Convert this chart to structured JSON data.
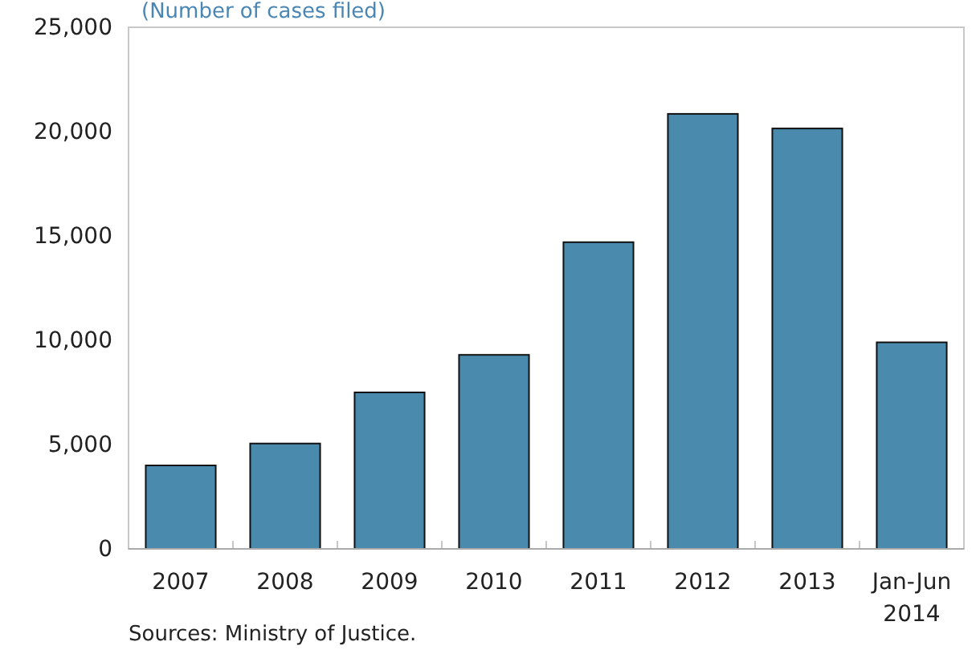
{
  "chart_data": {
    "type": "bar",
    "subtitle": "(Number of cases filed)",
    "categories": [
      "2007",
      "2008",
      "2009",
      "2010",
      "2011",
      "2012",
      "2013",
      "Jan-Jun 2014"
    ],
    "values": [
      4000,
      5050,
      7500,
      9300,
      14700,
      20850,
      20150,
      9900
    ],
    "color": "#4a8aad",
    "ylim": [
      0,
      25000
    ],
    "yticks": [
      {
        "value": 0,
        "label": "0"
      },
      {
        "value": 5000,
        "label": "5,000"
      },
      {
        "value": 10000,
        "label": "10,000"
      },
      {
        "value": 15000,
        "label": "15,000"
      },
      {
        "value": 20000,
        "label": "20,000"
      },
      {
        "value": 25000,
        "label": "25,000"
      }
    ],
    "grid": false,
    "annotations": [
      "Sources: Ministry of Justice."
    ]
  }
}
